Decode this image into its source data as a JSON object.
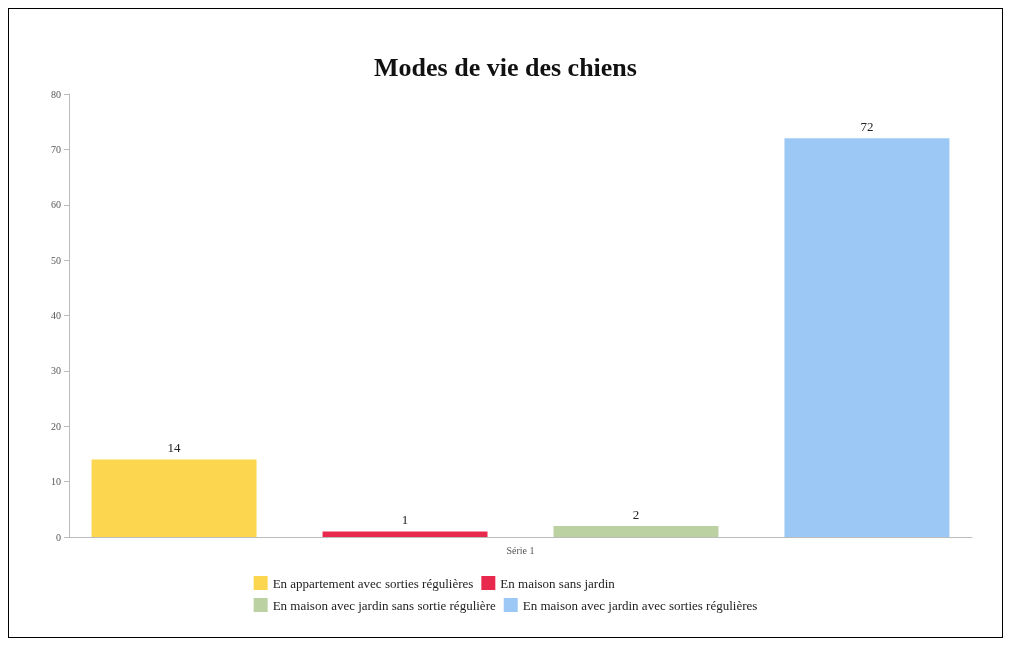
{
  "chart_data": {
    "type": "bar",
    "title": "Modes de vie des chiens",
    "categories": [
      "Série 1"
    ],
    "series": [
      {
        "name": "En appartement avec sorties régulières",
        "color": "#fcd64e",
        "values": [
          14
        ]
      },
      {
        "name": "En maison sans jardin",
        "color": "#e8294d",
        "values": [
          1
        ]
      },
      {
        "name": "En maison avec jardin sans sortie régulière",
        "color": "#bcd1a2",
        "values": [
          2
        ]
      },
      {
        "name": "En maison avec jardin avec sorties régulières",
        "color": "#9bc8f4",
        "values": [
          72
        ]
      }
    ],
    "ylim": [
      0,
      80
    ],
    "yticks": [
      0,
      10,
      20,
      30,
      40,
      50,
      60,
      70,
      80
    ],
    "data_labels": true,
    "grid": false,
    "legend": "bottom"
  }
}
